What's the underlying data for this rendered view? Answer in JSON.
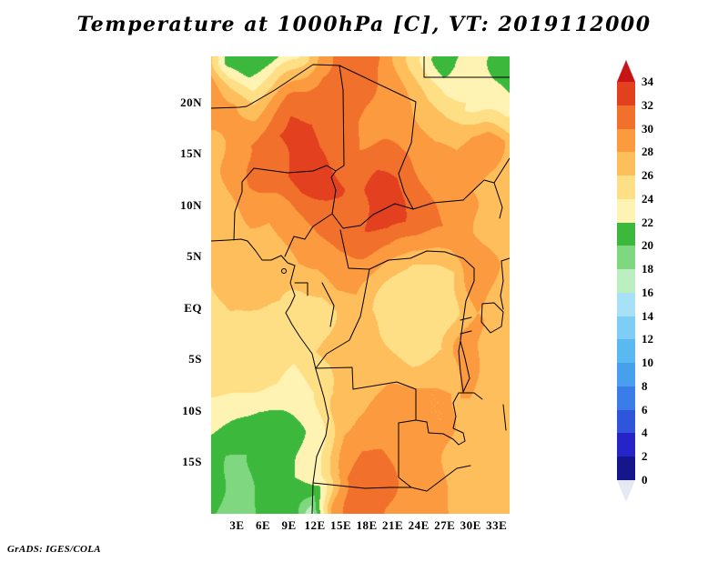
{
  "attribution": "GrADS: IGES/COLA",
  "chart_data": {
    "type": "heatmap",
    "title": "Temperature at 1000hPa [C], VT: 2019112000",
    "variable": "Temperature",
    "level": "1000hPa",
    "units": "C",
    "valid_time": "2019112000",
    "lon_range": [
      0,
      34.5
    ],
    "lat_range": [
      -20,
      24.5
    ],
    "grid_lines": false,
    "legend_position": "right",
    "x_ticks": {
      "values": [
        3,
        6,
        9,
        12,
        15,
        18,
        21,
        24,
        27,
        30,
        33
      ],
      "labels": [
        "3E",
        "6E",
        "9E",
        "12E",
        "15E",
        "18E",
        "21E",
        "24E",
        "27E",
        "30E",
        "33E"
      ]
    },
    "y_ticks": {
      "values": [
        20,
        15,
        10,
        5,
        0,
        -5,
        -10,
        -15
      ],
      "labels": [
        "20N",
        "15N",
        "10N",
        "5N",
        "EQ",
        "5S",
        "10S",
        "15S"
      ]
    },
    "colorbar": {
      "levels": [
        0,
        2,
        4,
        6,
        8,
        10,
        12,
        14,
        16,
        18,
        20,
        22,
        24,
        26,
        28,
        30,
        32,
        34
      ],
      "labels": [
        "0",
        "2",
        "4",
        "6",
        "8",
        "10",
        "12",
        "14",
        "16",
        "18",
        "20",
        "22",
        "24",
        "26",
        "28",
        "30",
        "32",
        "34"
      ],
      "colors": [
        "#e8e8f4",
        "#16168c",
        "#2424c8",
        "#2e55dc",
        "#3a7ce8",
        "#47a0ec",
        "#5ab9f0",
        "#7ecdf4",
        "#a8e0f8",
        "#bdeec2",
        "#7fd87f",
        "#3cb83c",
        "#fff3b4",
        "#ffdf86",
        "#ffbe5c",
        "#fb9a3e",
        "#f1702b",
        "#e2401f",
        "#c81414"
      ]
    },
    "grid": {
      "lons": [
        0,
        2.5,
        5,
        7.5,
        10,
        12.5,
        15,
        17.5,
        20,
        22.5,
        25,
        27.5,
        30,
        32.5,
        35
      ],
      "lats": [
        24,
        20,
        16,
        12,
        8,
        4,
        0,
        -4,
        -8,
        -12,
        -16,
        -20
      ],
      "temperature_c": [
        [
          28,
          22,
          20,
          21,
          24,
          29,
          31,
          31,
          30,
          27,
          24,
          20,
          24,
          21,
          20
        ],
        [
          29,
          28,
          26,
          28,
          31,
          32,
          31,
          30,
          29,
          28,
          26,
          25,
          24,
          23,
          22
        ],
        [
          27,
          29,
          31,
          32,
          33,
          32,
          31,
          30,
          30,
          29,
          28,
          28,
          30,
          30,
          27
        ],
        [
          26,
          28,
          30,
          31,
          33,
          33,
          32,
          32,
          33,
          32,
          30,
          29,
          28,
          27,
          26
        ],
        [
          26,
          27,
          28,
          28,
          29,
          30,
          31,
          32,
          33,
          32,
          31,
          30,
          29,
          27,
          26
        ],
        [
          26,
          27,
          27,
          27,
          28,
          28,
          29,
          29,
          28,
          26,
          26,
          26,
          30,
          29,
          27
        ],
        [
          25,
          26,
          26,
          26,
          25,
          25,
          27,
          27,
          25,
          24,
          24,
          25,
          28,
          27,
          27
        ],
        [
          25,
          25,
          25,
          26,
          25,
          26,
          27,
          27,
          26,
          24,
          25,
          26,
          30,
          27,
          28
        ],
        [
          24,
          24,
          24,
          24,
          23,
          24,
          26,
          27,
          28,
          28,
          28,
          28,
          28,
          27,
          27
        ],
        [
          22,
          21,
          20,
          21,
          22,
          24,
          28,
          29,
          29,
          29,
          28,
          28,
          27,
          26,
          26
        ],
        [
          21,
          19,
          20,
          21,
          22,
          24,
          30,
          32,
          31,
          29,
          29,
          28,
          28,
          27,
          26
        ],
        [
          20,
          19,
          20,
          21,
          22,
          16,
          29,
          31,
          30,
          29,
          28,
          28,
          27,
          27,
          26
        ]
      ]
    }
  }
}
